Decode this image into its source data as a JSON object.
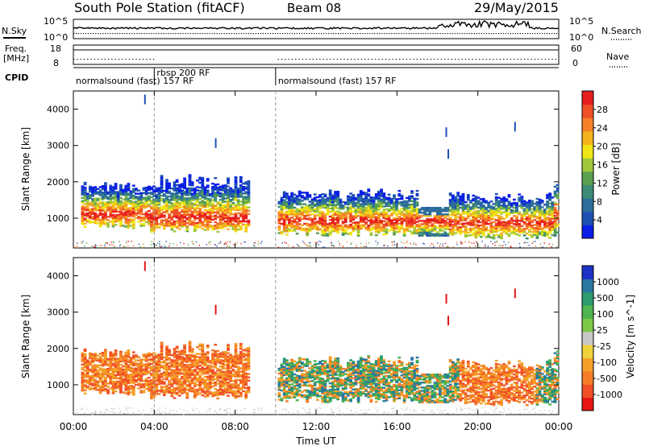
{
  "header": {
    "title": "South Pole Station (fitACF)",
    "beam": "Beam 08",
    "date": "29/May/2015"
  },
  "side_labels": {
    "nsky": "N.Sky",
    "freq": "Freq.",
    "freq_unit": "[MHz]",
    "cpid": "CPID",
    "nsearch": "N.Search",
    "nave": "Nave"
  },
  "ticks": {
    "nsky_top": "10^5",
    "nsky_bottom": "10^0",
    "nsearch_top": "10^5",
    "nsearch_bottom": "10^0",
    "freq_top": "18",
    "freq_bottom": "8",
    "nave_top": "60",
    "nave_bottom": "0"
  },
  "cpid_segments": [
    {
      "label": "normalsound (fast) 157 RF",
      "start_h": 0,
      "end_h": 4
    },
    {
      "label": "rbsp 200 RF",
      "start_h": 4,
      "end_h": 10
    },
    {
      "label": "normalsound (fast) 157 RF",
      "start_h": 10,
      "end_h": 24
    }
  ],
  "panel_common": {
    "ylabel": "Slant Range [km]",
    "xlabel": "Time UT",
    "yticks": [
      "1000",
      "2000",
      "3000",
      "4000"
    ],
    "xticks": [
      "00:00",
      "04:00",
      "08:00",
      "12:00",
      "16:00",
      "20:00",
      "00:00"
    ]
  },
  "colorbars": {
    "power": {
      "label": "Power [dB]",
      "ticks": [
        "4",
        "8",
        "12",
        "16",
        "20",
        "24",
        "28"
      ],
      "colors": [
        "#0a1ee6",
        "#1e50b4",
        "#2d6e9b",
        "#3c8c78",
        "#5aa050",
        "#a0c83c",
        "#f0e614",
        "#f5b41e",
        "#f58228",
        "#f05028",
        "#e61e1e"
      ]
    },
    "velocity": {
      "label": "Velocity [m s^-1]",
      "ticks": [
        "1000",
        "500",
        "100",
        "25",
        "-25",
        "-100",
        "-500",
        "-1000"
      ],
      "colors": [
        "#1e32c8",
        "#2878a0",
        "#2d9b6e",
        "#50b450",
        "#7dc846",
        "#c8c8c8",
        "#f0d23c",
        "#f5a028",
        "#f57d28",
        "#f05028",
        "#e61414"
      ]
    }
  },
  "chart_data": [
    {
      "type": "heatmap",
      "name_hint": "power",
      "x": "Time UT 00:00-24:00",
      "xlim": [
        0,
        24
      ],
      "ylim": [
        180,
        4500
      ],
      "zlabel": "Power [dB]",
      "zlim": [
        0,
        30
      ],
      "dashed_time_markers_h": [
        4,
        10
      ]
    },
    {
      "type": "heatmap",
      "name_hint": "velocity",
      "x": "Time UT 00:00-24:00",
      "xlim": [
        0,
        24
      ],
      "ylim": [
        180,
        4500
      ],
      "zlabel": "Velocity [m s^-1]",
      "zlim": [
        -1000,
        1000
      ],
      "dashed_time_markers_h": [
        4,
        10
      ]
    }
  ]
}
